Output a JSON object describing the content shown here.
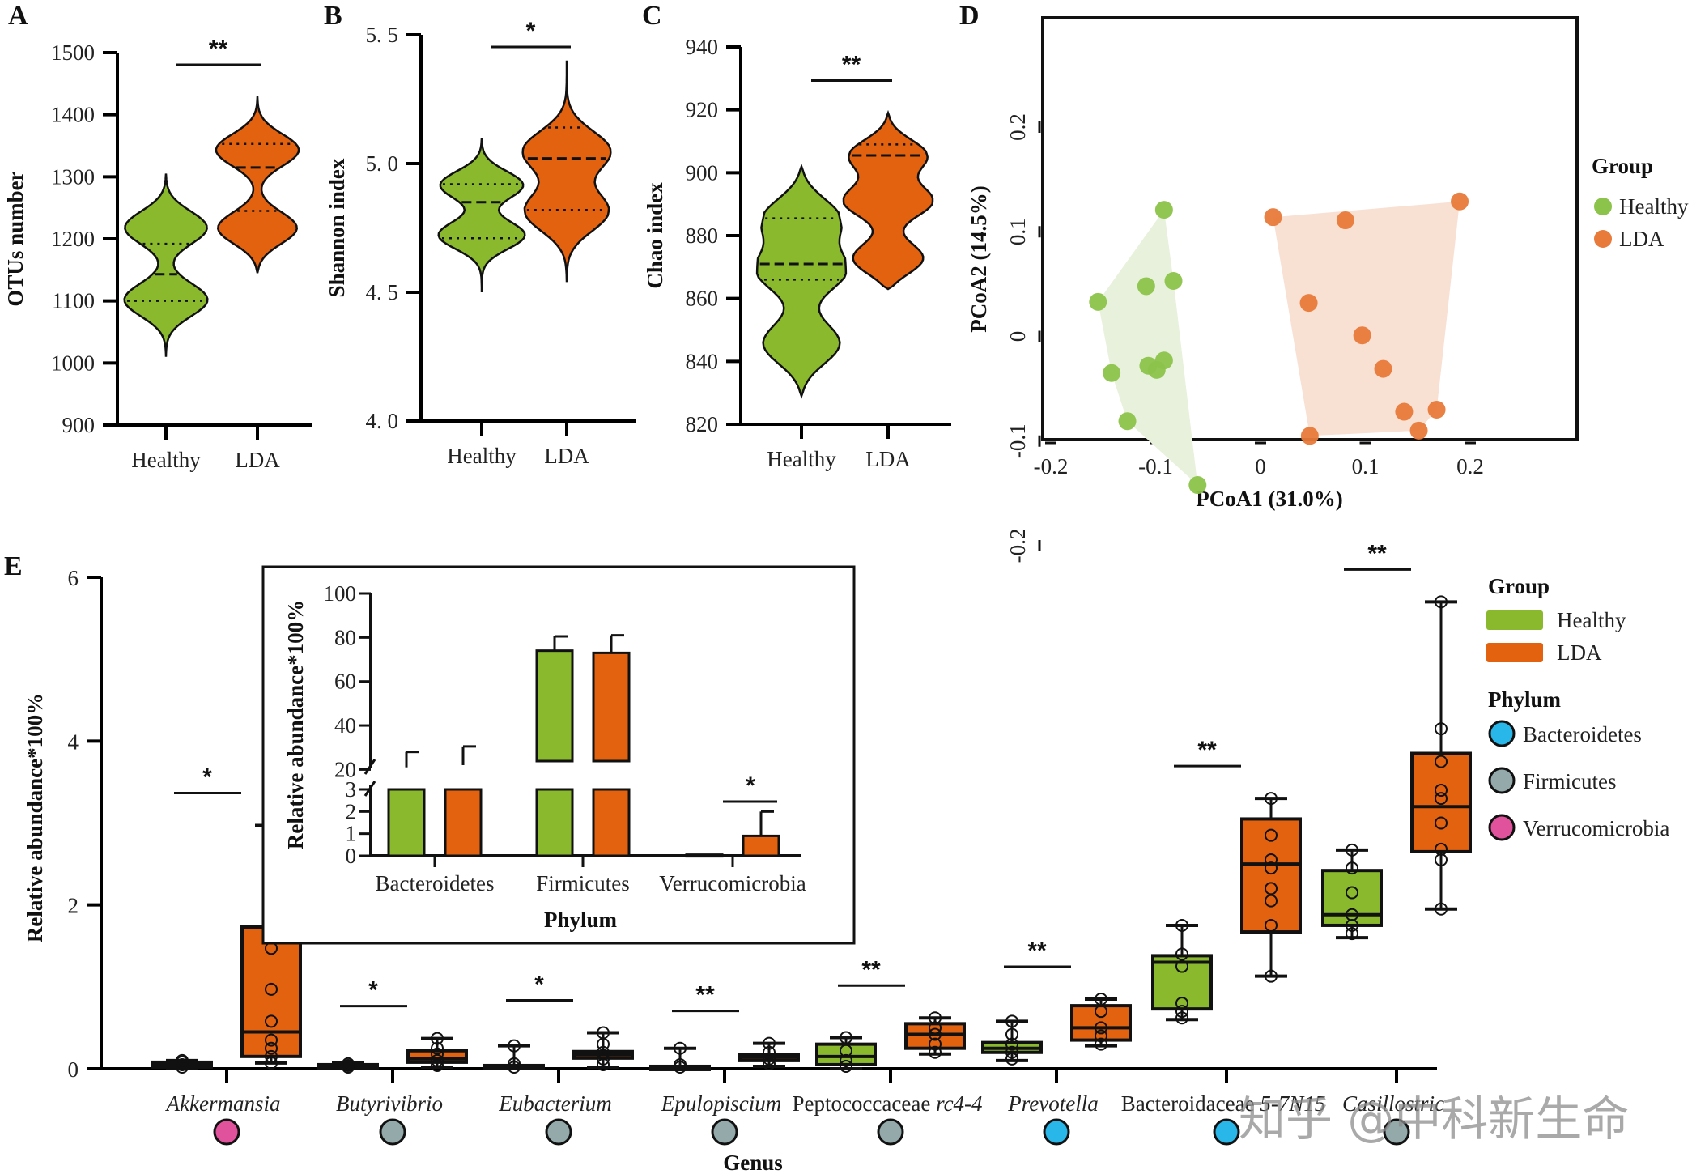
{
  "colors": {
    "healthy": "#8ab92d",
    "lda": "#e2620f",
    "healthy_pcoa": "#8cc34a",
    "lda_pcoa": "#e87a3a",
    "healthy_hull": "#e8f1dc",
    "lda_hull": "#f8e0d3",
    "bacteroidetes": "#29b6e8",
    "firmicutes": "#94a9aa",
    "verrucomicrobia": "#e0529c"
  },
  "watermark": "知乎 @中科新生命",
  "chart_data": [
    {
      "panel": "A",
      "type": "violin",
      "ylabel": "OTUs  number",
      "categories": [
        "Healthy",
        "LDA"
      ],
      "yticks": [
        "900",
        "1000",
        "1100",
        "1200",
        "1300",
        "1400",
        "1500"
      ],
      "ylim": [
        900,
        1500
      ],
      "significance": "**",
      "series": [
        {
          "name": "Healthy",
          "min": 1010,
          "q1": 1100,
          "median": 1143,
          "q3": 1192,
          "max": 1305,
          "modes": [
            1100,
            1220
          ]
        },
        {
          "name": "LDA",
          "min": 1145,
          "q1": 1245,
          "median": 1315,
          "q3": 1353,
          "max": 1430,
          "modes": [
            1215,
            1345
          ]
        }
      ]
    },
    {
      "panel": "B",
      "type": "violin",
      "ylabel": "Shannon index",
      "categories": [
        "Healthy",
        "LDA"
      ],
      "yticks": [
        "4. 0",
        "4. 5",
        "5. 0",
        "5. 5"
      ],
      "ylim": [
        4.0,
        5.5
      ],
      "significance": "*",
      "series": [
        {
          "name": "Healthy",
          "min": 4.5,
          "q1": 4.71,
          "median": 4.85,
          "q3": 4.92,
          "max": 5.1,
          "modes": [
            4.72,
            4.92
          ]
        },
        {
          "name": "LDA",
          "min": 4.54,
          "q1": 4.82,
          "median": 5.02,
          "q3": 5.14,
          "max": 5.4,
          "modes": [
            4.81,
            5.05
          ]
        }
      ]
    },
    {
      "panel": "C",
      "type": "violin",
      "ylabel": "Chao index",
      "categories": [
        "Healthy",
        "LDA"
      ],
      "yticks": [
        "820",
        "840",
        "860",
        "880",
        "900",
        "920",
        "940"
      ],
      "ylim": [
        820,
        940
      ],
      "significance": "**",
      "series": [
        {
          "name": "Healthy",
          "min": 829,
          "q1": 866,
          "median": 871,
          "q3": 885.5,
          "max": 902,
          "modes": [
            845,
            869,
            886
          ]
        },
        {
          "name": "LDA",
          "min": 863,
          "q1": 905.5,
          "median": 905.5,
          "q3": 909,
          "max": 919,
          "modes": [
            872,
            891,
            906
          ]
        }
      ]
    },
    {
      "panel": "D",
      "type": "scatter",
      "xlabel": "PCoA1 (31.0%)",
      "ylabel": "PCoA2 (14.5%)",
      "xticks": [
        "-0.2",
        "-0.1",
        "0",
        "0.1",
        "0.2"
      ],
      "yticks": [
        "-0.2",
        "-0.1",
        "0",
        "0.1",
        "0.2"
      ],
      "xlim": [
        -0.22,
        0.3
      ],
      "ylim": [
        -0.28,
        0.29
      ],
      "legend_title": "Group",
      "legend_position": "right",
      "series": [
        {
          "name": "Healthy",
          "points": [
            [
              -0.092,
              0.121
            ],
            [
              -0.109,
              0.048
            ],
            [
              -0.083,
              0.053
            ],
            [
              -0.155,
              0.033
            ],
            [
              -0.142,
              -0.035
            ],
            [
              -0.107,
              -0.028
            ],
            [
              -0.092,
              -0.023
            ],
            [
              -0.099,
              -0.032
            ],
            [
              -0.127,
              -0.081
            ],
            [
              -0.06,
              -0.142
            ]
          ]
        },
        {
          "name": "LDA",
          "points": [
            [
              0.012,
              0.114
            ],
            [
              0.081,
              0.111
            ],
            [
              0.19,
              0.129
            ],
            [
              0.046,
              0.032
            ],
            [
              0.097,
              0.001
            ],
            [
              0.117,
              -0.031
            ],
            [
              0.137,
              -0.072
            ],
            [
              0.168,
              -0.07
            ],
            [
              0.151,
              -0.09
            ],
            [
              0.047,
              -0.095
            ]
          ]
        }
      ]
    },
    {
      "panel": "E",
      "type": "box",
      "xlabel": "Genus",
      "ylabel": "Relative abundance*100%",
      "yticks": [
        "0",
        "2",
        "4",
        "6"
      ],
      "ylim": [
        0,
        6
      ],
      "legend": {
        "group_title": "Group",
        "groups": [
          "Healthy",
          "LDA"
        ],
        "phylum_title": "Phylum",
        "phyla": [
          "Bacteroidetes",
          "Firmicutes",
          "Verrucomicrobia"
        ]
      },
      "categories": [
        {
          "label": "Akkermansia",
          "italic": true,
          "phylum": "Verrucomicrobia",
          "significance": "*",
          "healthy": {
            "min": 0.0,
            "q1": 0.02,
            "median": 0.05,
            "q3": 0.08,
            "max": 0.1,
            "points": [
              0.02,
              0.05,
              0.08,
              0.1
            ]
          },
          "lda": {
            "min": 0.07,
            "q1": 0.15,
            "median": 0.45,
            "q3": 1.73,
            "max": 2.97,
            "points": [
              2.97,
              2.53,
              1.47,
              0.97,
              0.58,
              0.35,
              0.25,
              0.15,
              0.07
            ]
          }
        },
        {
          "label": "Butyrivibrio",
          "italic": true,
          "phylum": "Firmicutes",
          "significance": "*",
          "healthy": {
            "min": 0.01,
            "q1": 0.02,
            "median": 0.04,
            "q3": 0.05,
            "max": 0.07,
            "points": [
              0.02,
              0.04,
              0.06
            ]
          },
          "lda": {
            "min": 0.02,
            "q1": 0.08,
            "median": 0.12,
            "q3": 0.22,
            "max": 0.37,
            "points": [
              0.37,
              0.25,
              0.18,
              0.1,
              0.04
            ]
          }
        },
        {
          "label": "Eubacterium",
          "italic": true,
          "phylum": "Firmicutes",
          "significance": "*",
          "healthy": {
            "min": 0.0,
            "q1": 0.0,
            "median": 0.02,
            "q3": 0.04,
            "max": 0.28,
            "points": [
              0.28,
              0.06,
              0.02
            ]
          },
          "lda": {
            "min": 0.02,
            "q1": 0.13,
            "median": 0.17,
            "q3": 0.21,
            "max": 0.44,
            "points": [
              0.44,
              0.3,
              0.2,
              0.12,
              0.05
            ]
          }
        },
        {
          "label": "Epulopiscium",
          "italic": true,
          "phylum": "Firmicutes",
          "significance": "**",
          "healthy": {
            "min": 0.0,
            "q1": 0.0,
            "median": 0.02,
            "q3": 0.03,
            "max": 0.25,
            "points": [
              0.25,
              0.05,
              0.02
            ]
          },
          "lda": {
            "min": 0.03,
            "q1": 0.1,
            "median": 0.14,
            "q3": 0.17,
            "max": 0.31,
            "points": [
              0.31,
              0.2,
              0.12,
              0.06
            ]
          }
        },
        {
          "label": "Peptococcaceae",
          "label_suffix": "rc4-4",
          "italic": false,
          "phylum": "Firmicutes",
          "significance": "**",
          "healthy": {
            "min": 0.0,
            "q1": 0.05,
            "median": 0.15,
            "q3": 0.3,
            "max": 0.38,
            "points": [
              0.38,
              0.22,
              0.1,
              0.03
            ]
          },
          "lda": {
            "min": 0.18,
            "q1": 0.25,
            "median": 0.42,
            "q3": 0.55,
            "max": 0.62,
            "points": [
              0.62,
              0.5,
              0.42,
              0.3,
              0.2
            ]
          }
        },
        {
          "label": "Prevotella",
          "italic": true,
          "phylum": "Bacteroidetes",
          "significance": "**",
          "healthy": {
            "min": 0.1,
            "q1": 0.2,
            "median": 0.25,
            "q3": 0.32,
            "max": 0.58,
            "points": [
              0.58,
              0.42,
              0.3,
              0.2,
              0.12
            ]
          },
          "lda": {
            "min": 0.28,
            "q1": 0.35,
            "median": 0.5,
            "q3": 0.77,
            "max": 0.85,
            "points": [
              0.85,
              0.7,
              0.5,
              0.4,
              0.3
            ]
          }
        },
        {
          "label": "Bacteroidaceae",
          "label_suffix": "5-7N15",
          "italic": false,
          "phylum": "Bacteroidetes",
          "significance": "**",
          "healthy": {
            "min": 0.6,
            "q1": 0.73,
            "median": 1.3,
            "q3": 1.38,
            "max": 1.75,
            "points": [
              1.75,
              1.4,
              1.25,
              0.8,
              0.7,
              0.62
            ]
          },
          "lda": {
            "min": 1.13,
            "q1": 1.67,
            "median": 2.5,
            "q3": 3.05,
            "max": 3.3,
            "points": [
              3.3,
              2.85,
              2.55,
              2.45,
              2.2,
              2.05,
              1.75,
              1.13
            ]
          }
        },
        {
          "label": "Casillostric",
          "italic": true,
          "phylum": "Firmicutes",
          "significance": "**",
          "healthy": {
            "min": 1.6,
            "q1": 1.75,
            "median": 1.88,
            "q3": 2.42,
            "max": 2.67,
            "points": [
              2.67,
              2.45,
              2.15,
              1.88,
              1.75,
              1.65
            ]
          },
          "lda": {
            "min": 1.95,
            "q1": 2.65,
            "median": 3.2,
            "q3": 3.85,
            "max": 5.7,
            "points": [
              5.7,
              4.15,
              3.75,
              3.4,
              3.3,
              3.0,
              2.68,
              2.55,
              1.95
            ]
          }
        }
      ]
    },
    {
      "panel": "E-inset",
      "type": "bar",
      "xlabel": "Phylum",
      "ylabel": "Relative abundance*100%",
      "categories": [
        "Bacteroidetes",
        "Firmicutes",
        "Verrucomicrobia"
      ],
      "yticks_upper": [
        "20",
        "40",
        "60",
        "80",
        "100"
      ],
      "yticks_lower": [
        "0",
        "1",
        "2",
        "3"
      ],
      "axis_break": [
        3,
        15
      ],
      "significance": [
        "",
        "",
        "*"
      ],
      "series": [
        {
          "name": "Healthy",
          "values": [
            21,
            74,
            0.05
          ],
          "errors": [
            7,
            6.5,
            0
          ]
        },
        {
          "name": "LDA",
          "values": [
            22,
            73,
            0.9
          ],
          "errors": [
            8.5,
            8,
            1.1
          ]
        }
      ]
    }
  ]
}
